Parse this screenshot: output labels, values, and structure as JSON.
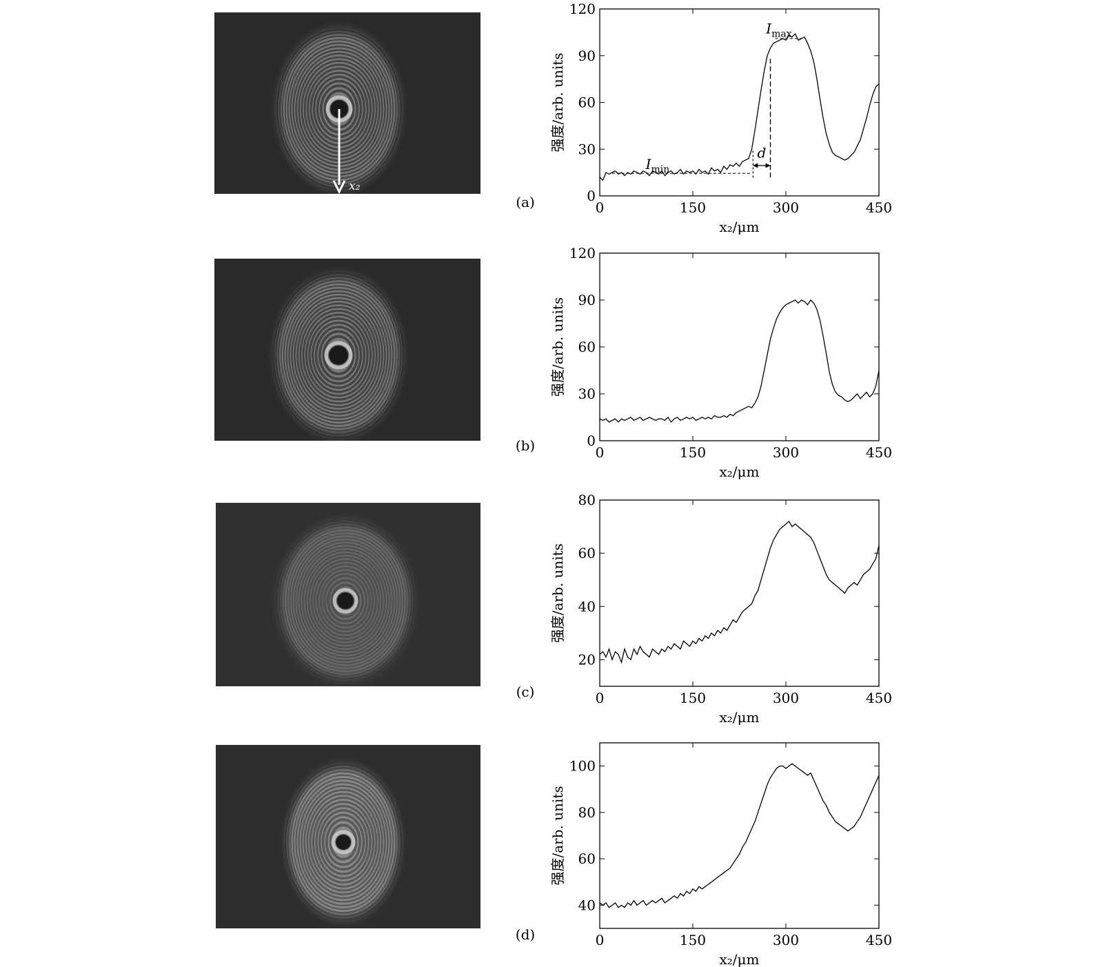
{
  "panels": [
    {
      "label": "(a)",
      "rings": "strong",
      "arrow_label": "x₂"
    },
    {
      "label": "(b)",
      "rings": "strong"
    },
    {
      "label": "(c)",
      "rings": "weak"
    },
    {
      "label": "(d)",
      "rings": "medium"
    }
  ],
  "chart_data": [
    {
      "type": "line",
      "panel": "(a)",
      "xlabel": "x₂/μm",
      "ylabel": "强度/arb. units",
      "xlim": [
        0,
        450
      ],
      "ylim": [
        0,
        120
      ],
      "xticks": [
        0,
        150,
        300,
        450
      ],
      "yticks": [
        0,
        30,
        60,
        90,
        120
      ],
      "annotations": [
        "I_max",
        "I_min",
        "d"
      ],
      "x": [
        0,
        5,
        10,
        15,
        20,
        25,
        30,
        35,
        40,
        45,
        50,
        55,
        60,
        65,
        70,
        75,
        80,
        85,
        90,
        95,
        100,
        105,
        110,
        115,
        120,
        125,
        130,
        135,
        140,
        145,
        150,
        155,
        160,
        165,
        170,
        175,
        180,
        185,
        190,
        195,
        200,
        205,
        210,
        215,
        220,
        225,
        230,
        235,
        240,
        245,
        250,
        255,
        260,
        265,
        270,
        275,
        280,
        285,
        290,
        295,
        300,
        305,
        310,
        315,
        320,
        325,
        330,
        335,
        340,
        345,
        350,
        355,
        360,
        365,
        370,
        375,
        380,
        385,
        390,
        395,
        400,
        405,
        410,
        415,
        420,
        425,
        430,
        435,
        440,
        445,
        450
      ],
      "values": [
        12,
        10,
        15,
        14,
        15,
        16,
        14,
        15,
        13,
        15,
        14,
        16,
        15,
        14,
        16,
        15,
        13,
        16,
        15,
        14,
        16,
        13,
        15,
        16,
        14,
        15,
        17,
        14,
        16,
        15,
        16,
        14,
        17,
        15,
        16,
        14,
        18,
        16,
        17,
        15,
        19,
        17,
        20,
        19,
        21,
        19,
        22,
        23,
        24,
        30,
        42,
        55,
        68,
        80,
        90,
        95,
        98,
        99,
        100,
        101,
        100,
        103,
        102,
        104,
        100,
        101,
        102,
        98,
        93,
        86,
        75,
        62,
        50,
        40,
        33,
        28,
        26,
        25,
        24,
        23,
        24,
        26,
        28,
        32,
        36,
        43,
        50,
        58,
        65,
        70,
        72
      ]
    },
    {
      "type": "line",
      "panel": "(b)",
      "xlabel": "x₂/μm",
      "ylabel": "强度/arb. units",
      "xlim": [
        0,
        450
      ],
      "ylim": [
        0,
        120
      ],
      "xticks": [
        0,
        150,
        300,
        450
      ],
      "yticks": [
        0,
        30,
        60,
        90,
        120
      ],
      "x": [
        0,
        5,
        10,
        15,
        20,
        25,
        30,
        35,
        40,
        45,
        50,
        55,
        60,
        65,
        70,
        75,
        80,
        85,
        90,
        95,
        100,
        105,
        110,
        115,
        120,
        125,
        130,
        135,
        140,
        145,
        150,
        155,
        160,
        165,
        170,
        175,
        180,
        185,
        190,
        195,
        200,
        205,
        210,
        215,
        220,
        225,
        230,
        235,
        240,
        245,
        250,
        255,
        260,
        265,
        270,
        275,
        280,
        285,
        290,
        295,
        300,
        305,
        310,
        315,
        320,
        325,
        330,
        335,
        340,
        345,
        350,
        355,
        360,
        365,
        370,
        375,
        380,
        385,
        390,
        395,
        400,
        405,
        410,
        415,
        420,
        425,
        430,
        435,
        440,
        445,
        450
      ],
      "values": [
        14,
        13,
        14,
        12,
        13,
        14,
        12,
        14,
        13,
        14,
        15,
        13,
        14,
        15,
        13,
        14,
        15,
        14,
        13,
        14,
        14,
        13,
        15,
        12,
        14,
        15,
        13,
        14,
        15,
        14,
        15,
        13,
        14,
        15,
        14,
        15,
        14,
        16,
        15,
        15,
        16,
        15,
        17,
        16,
        18,
        19,
        20,
        21,
        22,
        21,
        24,
        28,
        35,
        45,
        55,
        65,
        72,
        78,
        82,
        85,
        87,
        88,
        89,
        90,
        88,
        90,
        89,
        87,
        90,
        88,
        84,
        77,
        67,
        56,
        44,
        36,
        31,
        29,
        28,
        26,
        25,
        26,
        28,
        30,
        27,
        29,
        31,
        28,
        30,
        35,
        45
      ]
    },
    {
      "type": "line",
      "panel": "(c)",
      "xlabel": "x₂/μm",
      "ylabel": "强度/arb. units",
      "xlim": [
        0,
        450
      ],
      "ylim": [
        10,
        80
      ],
      "xticks": [
        0,
        150,
        300,
        450
      ],
      "yticks": [
        20,
        40,
        60,
        80
      ],
      "x": [
        0,
        5,
        10,
        15,
        20,
        25,
        30,
        35,
        40,
        45,
        50,
        55,
        60,
        65,
        70,
        75,
        80,
        85,
        90,
        95,
        100,
        105,
        110,
        115,
        120,
        125,
        130,
        135,
        140,
        145,
        150,
        155,
        160,
        165,
        170,
        175,
        180,
        185,
        190,
        195,
        200,
        205,
        210,
        215,
        220,
        225,
        230,
        235,
        240,
        245,
        250,
        255,
        260,
        265,
        270,
        275,
        280,
        285,
        290,
        295,
        300,
        305,
        310,
        315,
        320,
        325,
        330,
        335,
        340,
        345,
        350,
        355,
        360,
        365,
        370,
        375,
        380,
        385,
        390,
        395,
        400,
        405,
        410,
        415,
        420,
        425,
        430,
        435,
        440,
        445,
        450
      ],
      "values": [
        22,
        23,
        21,
        24,
        20,
        23,
        22,
        19,
        24,
        21,
        20,
        24,
        22,
        25,
        23,
        22,
        21,
        24,
        23,
        22,
        24,
        23,
        25,
        24,
        26,
        25,
        24,
        27,
        26,
        25,
        27,
        26,
        28,
        27,
        29,
        28,
        30,
        29,
        31,
        30,
        32,
        31,
        33,
        35,
        34,
        36,
        38,
        39,
        40,
        41,
        44,
        46,
        50,
        54,
        58,
        62,
        65,
        67,
        69,
        70,
        71,
        72,
        70,
        71,
        70,
        69,
        68,
        67,
        66,
        64,
        61,
        58,
        55,
        52,
        50,
        49,
        48,
        47,
        46,
        45,
        47,
        48,
        49,
        48,
        50,
        52,
        53,
        54,
        56,
        58,
        63
      ]
    },
    {
      "type": "line",
      "panel": "(d)",
      "xlabel": "x₂/μm",
      "ylabel": "强度/arb. units",
      "xlim": [
        0,
        450
      ],
      "ylim": [
        30,
        110
      ],
      "xticks": [
        0,
        150,
        300,
        450
      ],
      "yticks": [
        40,
        60,
        80,
        100
      ],
      "x": [
        0,
        5,
        10,
        15,
        20,
        25,
        30,
        35,
        40,
        45,
        50,
        55,
        60,
        65,
        70,
        75,
        80,
        85,
        90,
        95,
        100,
        105,
        110,
        115,
        120,
        125,
        130,
        135,
        140,
        145,
        150,
        155,
        160,
        165,
        170,
        175,
        180,
        185,
        190,
        195,
        200,
        205,
        210,
        215,
        220,
        225,
        230,
        235,
        240,
        245,
        250,
        255,
        260,
        265,
        270,
        275,
        280,
        285,
        290,
        295,
        300,
        305,
        310,
        315,
        320,
        325,
        330,
        335,
        340,
        345,
        350,
        355,
        360,
        365,
        370,
        375,
        380,
        385,
        390,
        395,
        400,
        405,
        410,
        415,
        420,
        425,
        430,
        435,
        440,
        445,
        450
      ],
      "values": [
        41,
        40,
        41,
        39,
        40,
        41,
        39,
        40,
        39,
        41,
        40,
        42,
        40,
        41,
        42,
        40,
        41,
        42,
        41,
        42,
        43,
        41,
        42,
        43,
        44,
        43,
        45,
        44,
        46,
        45,
        47,
        46,
        48,
        47,
        48,
        49,
        50,
        51,
        52,
        53,
        54,
        55,
        56,
        58,
        60,
        62,
        65,
        67,
        70,
        73,
        76,
        80,
        84,
        88,
        92,
        95,
        97,
        99,
        100,
        100,
        99,
        100,
        101,
        100,
        99,
        98,
        97,
        96,
        97,
        94,
        91,
        88,
        85,
        83,
        80,
        78,
        76,
        75,
        74,
        73,
        72,
        73,
        74,
        76,
        78,
        81,
        84,
        87,
        90,
        93,
        96
      ]
    }
  ]
}
